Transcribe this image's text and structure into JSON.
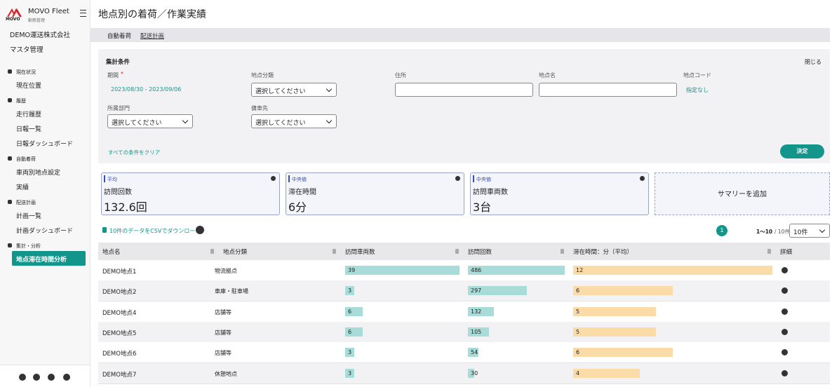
{
  "sidebar": {
    "logo_mark": "MOVO",
    "logo_title": "MOVO Fleet",
    "logo_sub": "動態管理",
    "company": "DEMO運送株式会社",
    "master": "マスタ管理",
    "sections": [
      {
        "title": "現在状況",
        "items": [
          "現在位置"
        ]
      },
      {
        "title": "履歴",
        "items": [
          "走行履歴",
          "日報一覧",
          "日報ダッシュボード"
        ]
      },
      {
        "title": "自動着荷",
        "items": [
          "車両別地点設定",
          "実績"
        ]
      },
      {
        "title": "配送計画",
        "items": [
          "計画一覧",
          "計画ダッシュボード"
        ]
      },
      {
        "title": "集計・分析",
        "items": [
          "地点滞在時間分析"
        ]
      }
    ]
  },
  "header": {
    "title": "地点別の着荷／作業実績",
    "tabs": [
      "自動着荷",
      "配送計画"
    ]
  },
  "filters": {
    "title": "集計条件",
    "close": "閉じる",
    "period_label": "期間",
    "required_mark": "*",
    "period_value": "2023/08/30 - 2023/09/06",
    "category_label": "地点分類",
    "category_value": "選択してください",
    "address_label": "住所",
    "name_label": "地点名",
    "code_label": "地点コード",
    "code_value": "指定なし",
    "dept_label": "所属部門",
    "dept_value": "選択してください",
    "charter_label": "傭車先",
    "charter_value": "選択してください",
    "clear": "すべての条件をクリア",
    "submit": "決定"
  },
  "summary": {
    "cards": [
      {
        "tag": "平均",
        "label": "訪問回数",
        "value": "132.6回"
      },
      {
        "tag": "中央値",
        "label": "滞在時間",
        "value": "6分"
      },
      {
        "tag": "中央値",
        "label": "訪問車両数",
        "value": "3台"
      }
    ],
    "add": "サマリーを追加"
  },
  "toolbar": {
    "download": "10件のデータをCSVでダウンロード",
    "page": "1",
    "range": "1〜10",
    "total": "/ 10件",
    "per_page": "10件"
  },
  "table": {
    "columns": [
      "地点名",
      "地点分類",
      "訪問車両数",
      "訪問回数",
      "滞在時間：分（平均）",
      "詳細"
    ],
    "rows": [
      [
        "DEMO地点1",
        "物流拠点",
        39,
        486,
        12
      ],
      [
        "DEMO地点2",
        "車庫・駐車場",
        3,
        297,
        6
      ],
      [
        "DEMO地点4",
        "店舗等",
        6,
        132,
        5
      ],
      [
        "DEMO地点5",
        "店舗等",
        6,
        105,
        5
      ],
      [
        "DEMO地点6",
        "店舗等",
        3,
        54,
        6
      ],
      [
        "DEMO地点7",
        "休憩地点",
        3,
        30,
        4
      ]
    ]
  }
}
